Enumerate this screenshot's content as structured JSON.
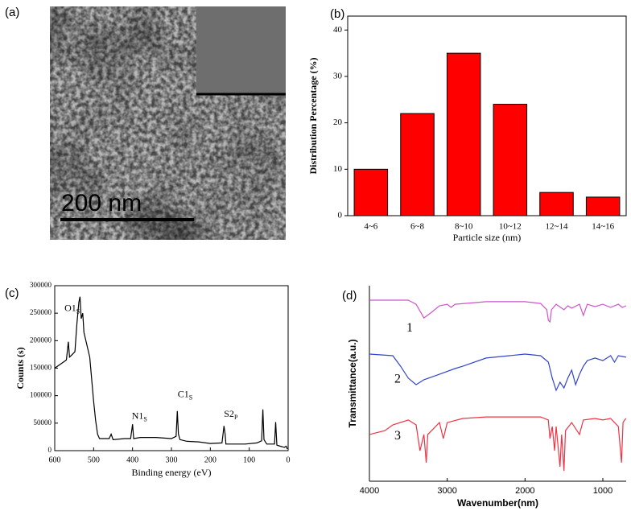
{
  "image_panel": {
    "panel_label": "(a)",
    "scale_bar": "200 nm"
  },
  "chart_data": [
    {
      "type": "bar",
      "panel_label": "(b)",
      "x_label": "Particle size (nm)",
      "y_label": "Distribution Percentage (%)",
      "categories": [
        "4~6",
        "6~8",
        "8~10",
        "10~12",
        "12~14",
        "14~16"
      ],
      "values": [
        10,
        22,
        35,
        24,
        5,
        4
      ],
      "color": "#ff0000",
      "ylim": [
        0,
        43
      ],
      "yticks": [
        0,
        10,
        20,
        30,
        40
      ]
    },
    {
      "type": "line",
      "panel_label": "(c)",
      "x_label": "Binding energy (eV)",
      "y_label": "Counts (s)",
      "x": [
        600,
        590,
        580,
        570,
        565,
        562,
        555,
        548,
        543,
        538,
        535,
        532,
        528,
        525,
        520,
        515,
        510,
        505,
        500,
        495,
        490,
        485,
        470,
        460,
        455,
        450,
        420,
        405,
        400,
        397,
        380,
        340,
        300,
        288,
        285,
        282,
        278,
        260,
        230,
        200,
        170,
        165,
        162,
        160,
        140,
        110,
        80,
        68,
        65,
        62,
        55,
        35,
        32,
        29,
        20,
        10,
        5,
        2
      ],
      "series": [
        {
          "color": "#000000",
          "values": [
            150000,
            155000,
            160000,
            165000,
            198000,
            170000,
            175000,
            180000,
            230000,
            270000,
            280000,
            240000,
            250000,
            215000,
            200000,
            185000,
            170000,
            130000,
            90000,
            55000,
            30000,
            22000,
            22000,
            22000,
            30000,
            20000,
            22000,
            22000,
            48000,
            22000,
            24000,
            24000,
            22000,
            26000,
            72000,
            30000,
            20000,
            17000,
            16000,
            13000,
            14000,
            45000,
            30000,
            12000,
            12000,
            12000,
            14000,
            18000,
            75000,
            20000,
            12000,
            12000,
            52000,
            10000,
            8000,
            6000,
            8000,
            3000
          ]
        }
      ],
      "annotations": [
        {
          "text": "O1",
          "sub": "S"
        },
        {
          "text": "N1",
          "sub": "S"
        },
        {
          "text": "C1",
          "sub": "S"
        },
        {
          "text": "S2",
          "sub": "P"
        }
      ],
      "xlim": [
        600,
        0
      ],
      "xticks": [
        600,
        500,
        400,
        300,
        200,
        100,
        0
      ],
      "ylim": [
        0,
        300000
      ],
      "yticks": [
        0,
        50000,
        100000,
        150000,
        200000,
        250000,
        300000
      ]
    },
    {
      "type": "line",
      "panel_label": "(d)",
      "x_label": "Wavenumber(nm)",
      "y_label": "Transmittance(a.u.)",
      "xlim": [
        4000,
        700
      ],
      "xticks": [
        4000,
        3000,
        2000,
        1000
      ],
      "ylim": [
        0,
        100
      ],
      "series": [
        {
          "name": "1",
          "color": "#cc55cc",
          "x": [
            4000,
            3500,
            3400,
            3300,
            3200,
            3100,
            3000,
            2950,
            2900,
            2500,
            2000,
            1800,
            1720,
            1700,
            1680,
            1660,
            1600,
            1500,
            1450,
            1400,
            1300,
            1250,
            1200,
            1100,
            1000,
            900,
            800,
            750,
            700
          ],
          "values": [
            92.6,
            92.6,
            90.5,
            83.5,
            86.4,
            89.7,
            90.5,
            88.9,
            90.5,
            91.8,
            91.8,
            90.9,
            87.7,
            82.3,
            81.5,
            87.7,
            90.5,
            87.7,
            89.7,
            88.5,
            90.5,
            84.8,
            90.5,
            89.3,
            90.5,
            88.9,
            90.5,
            88.9,
            89.7
          ]
        },
        {
          "name": "2",
          "color": "#3344cc",
          "x": [
            4000,
            3700,
            3600,
            3500,
            3400,
            3300,
            3100,
            2900,
            2800,
            2500,
            2200,
            2000,
            1800,
            1700,
            1650,
            1600,
            1550,
            1500,
            1450,
            1400,
            1350,
            1300,
            1250,
            1200,
            1100,
            1000,
            900,
            850,
            800,
            700
          ],
          "values": [
            65.0,
            64.2,
            58.8,
            52.7,
            49.4,
            51.9,
            54.7,
            57.6,
            58.8,
            63.0,
            64.2,
            65.0,
            64.2,
            60.9,
            52.7,
            46.5,
            50.6,
            47.7,
            52.7,
            56.8,
            49.4,
            54.7,
            58.8,
            61.7,
            63.0,
            61.7,
            64.2,
            60.9,
            64.2,
            63.4
          ]
        },
        {
          "name": "3",
          "color": "#ee3344",
          "x": [
            4000,
            3800,
            3700,
            3500,
            3400,
            3350,
            3300,
            3270,
            3250,
            3100,
            3050,
            3000,
            2800,
            2500,
            2000,
            1800,
            1700,
            1680,
            1650,
            1620,
            1600,
            1550,
            1530,
            1500,
            1480,
            1400,
            1300,
            1250,
            1100,
            1000,
            900,
            800,
            760,
            740,
            720,
            700
          ],
          "values": [
            23.9,
            25.9,
            28.8,
            31.3,
            28.8,
            15.6,
            23.9,
            9.5,
            23.9,
            30.0,
            21.8,
            30.0,
            32.1,
            32.9,
            32.9,
            32.9,
            31.3,
            21.8,
            28.0,
            15.6,
            28.0,
            7.4,
            23.9,
            5.3,
            25.9,
            30.0,
            23.9,
            31.3,
            32.1,
            31.3,
            32.1,
            28.0,
            9.5,
            30.0,
            31.3,
            32.1
          ]
        }
      ]
    }
  ]
}
